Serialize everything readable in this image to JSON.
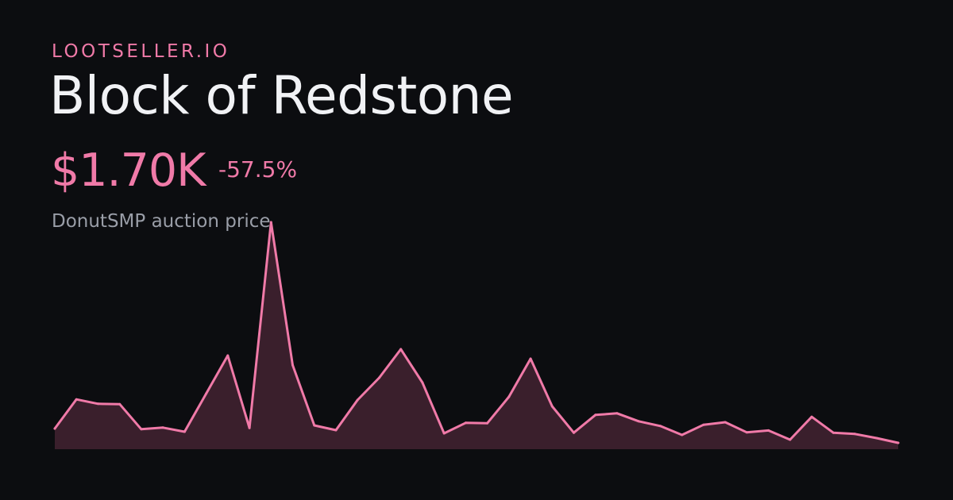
{
  "header": {
    "brand": "LOOTSELLER.IO",
    "title": "Block of Redstone",
    "price": "$1.70K",
    "change": "-57.5%",
    "subtitle": "DonutSMP auction price"
  },
  "colors": {
    "background": "#0c0d10",
    "accent": "#f07aa8",
    "area_fill": "#3a1f2c",
    "title_text": "#f1f2f5",
    "muted_text": "#9a9ea8"
  },
  "chart_data": {
    "type": "area",
    "x": [
      0,
      1,
      2,
      3,
      4,
      5,
      6,
      7,
      8,
      9,
      10,
      11,
      12,
      13,
      14,
      15,
      16,
      17,
      18,
      19,
      20,
      21,
      22,
      23,
      24,
      25,
      26,
      27,
      28,
      29,
      30,
      31,
      32,
      33,
      34,
      35,
      36,
      37,
      38,
      39
    ],
    "values": [
      0.5,
      1.42,
      1.28,
      1.27,
      0.48,
      0.53,
      0.4,
      1.6,
      2.8,
      0.52,
      7.0,
      2.5,
      0.6,
      0.45,
      1.4,
      2.1,
      3.0,
      1.95,
      0.35,
      0.68,
      0.67,
      1.5,
      2.7,
      1.2,
      0.37,
      0.93,
      0.98,
      0.73,
      0.58,
      0.3,
      0.62,
      0.7,
      0.38,
      0.44,
      0.15,
      0.87,
      0.37,
      0.33,
      0.2,
      0.05
    ],
    "ylim": [
      -0.15,
      7.3
    ],
    "grid": false,
    "legend": "none",
    "xlabel": "",
    "ylabel": ""
  }
}
